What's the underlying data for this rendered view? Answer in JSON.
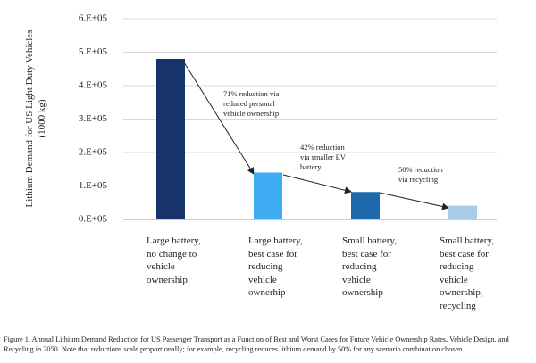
{
  "chart_data": {
    "type": "bar",
    "y_label": "Lithium Demand for US Light Duty Vehicles\n(1000 kg)",
    "categories": [
      "Large battery,\nno change to\nvehicle\nownership",
      "Large battery,\nbest case for\nreducing\nvehicle\nownerhip",
      "Small battery,\nbest case for\nreducing\nvehicle\nownership",
      "Small battery,\nbest case for\nreducing\nvehicle\nownership,\nrecycling"
    ],
    "values": [
      480000,
      140000,
      82000,
      41000
    ],
    "colors": [
      "#16336a",
      "#3eacf2",
      "#1d68ad",
      "#a7cde8"
    ],
    "ylim": [
      0,
      600000
    ],
    "yticks": [
      {
        "value": 0,
        "label": "0.E+05"
      },
      {
        "value": 100000,
        "label": "1.E+05"
      },
      {
        "value": 200000,
        "label": "2.E+05"
      },
      {
        "value": 300000,
        "label": "3.E+05"
      },
      {
        "value": 400000,
        "label": "4.E+05"
      },
      {
        "value": 500000,
        "label": "5.E+05"
      },
      {
        "value": 600000,
        "label": "6.E+05"
      }
    ],
    "grid": true,
    "annotations": [
      "71% reduction via\nreduced personal\nvehicle ownership",
      "42% reduction\nvia smaller EV\nbattery",
      "50% reduction\nvia recycling"
    ],
    "caption": "Figure 1. Annual Lithium Demand Reduction for US Passenger Transport as a Function of Best and Worst Cases for Future Vehicle Ownership Rates, Vehicle Design, and Recycling in 2050. Note that reductions scale proportionally; for example, recycling reduces lithium demand by 50% for any scenario combination chosen."
  }
}
